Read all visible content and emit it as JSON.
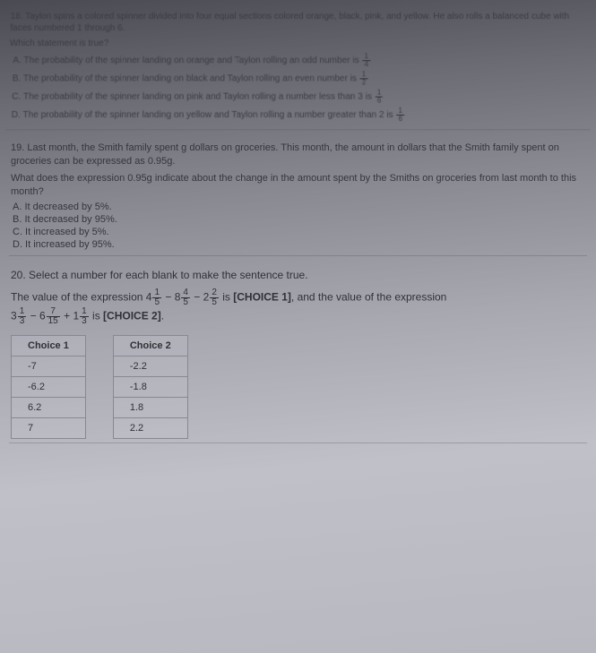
{
  "q18": {
    "number": "18.",
    "stem1": "Taylon spins a colored spinner divided into four equal sections colored orange, black, pink, and yellow. He also rolls a balanced cube with faces numbered 1 through 6.",
    "stem2": "Which statement is true?",
    "optA": "A. The probability of the spinner landing on orange and Taylon rolling an odd number is",
    "optB": "B. The probability of the spinner landing on black and Taylon rolling an even number is",
    "optC": "C. The probability of the spinner landing on pink and Taylon rolling a number less than 3 is",
    "optD": "D. The probability of the spinner landing on yellow and Taylon rolling a number greater than 2 is",
    "fA_n": "1",
    "fA_d": "4",
    "fB_n": "1",
    "fB_d": "2",
    "fC_n": "1",
    "fC_d": "6",
    "fD_n": "1",
    "fD_d": "6"
  },
  "q19": {
    "number": "19.",
    "stem1": "Last month, the Smith family spent g dollars on groceries. This month, the amount in dollars that the Smith family spent on groceries can be expressed as 0.95g.",
    "stem2": "What does the expression 0.95g indicate about the change in the amount spent by the Smiths on groceries from last month to this month?",
    "optA": "A. It decreased by 5%.",
    "optB": "B. It decreased by 95%.",
    "optC": "C. It increased by 5%.",
    "optD": "D. It increased by 95%."
  },
  "q20": {
    "number": "20.",
    "stem": "Select a number for each blank to make the sentence true.",
    "expr_pre": "The value of the expression ",
    "m1_w": "4",
    "m1_n": "1",
    "m1_d": "5",
    "m2_w": "8",
    "m2_n": "4",
    "m2_d": "5",
    "m3_w": "2",
    "m3_n": "2",
    "m3_d": "5",
    "choice1_label": "[CHOICE 1]",
    "mid": ", and the value of the expression",
    "m4_w": "3",
    "m4_n": "1",
    "m4_d": "3",
    "m5_w": "6",
    "m5_n": "7",
    "m5_d": "15",
    "m6_w": "1",
    "m6_n": "1",
    "m6_d": "3",
    "choice2_label": "[CHOICE 2]",
    "table1_header": "Choice 1",
    "table2_header": "Choice 2",
    "table1_rows": [
      "-7",
      "-6.2",
      "6.2",
      "7"
    ],
    "table2_rows": [
      "-2.2",
      "-1.8",
      "1.8",
      "2.2"
    ]
  }
}
